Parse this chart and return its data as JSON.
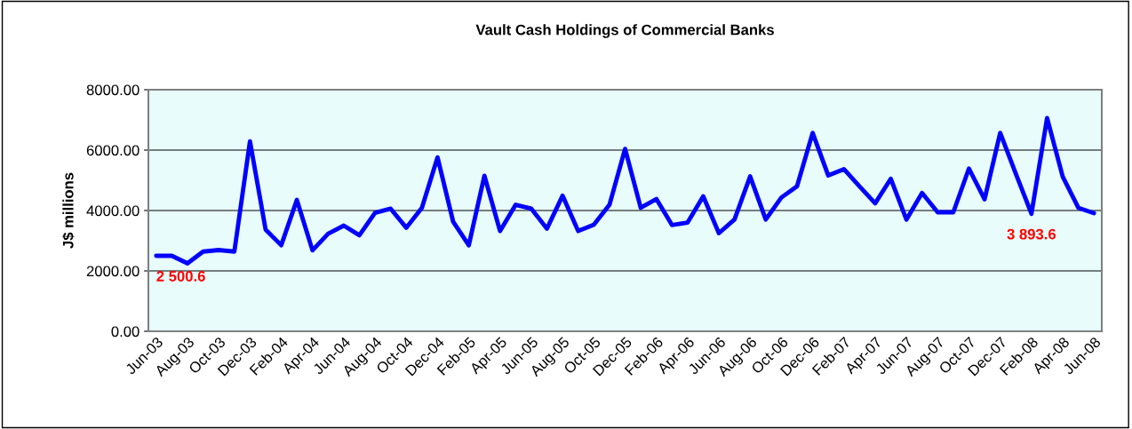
{
  "chart_data": {
    "type": "line",
    "title": "Vault Cash Holdings of Commercial Banks",
    "ylabel": "J$ millions",
    "categories": [
      "Jun-03",
      null,
      "Aug-03",
      null,
      "Oct-03",
      null,
      "Dec-03",
      null,
      "Feb-04",
      null,
      "Apr-04",
      null,
      "Jun-04",
      null,
      "Aug-04",
      null,
      "Oct-04",
      null,
      "Dec-04",
      null,
      "Feb-05",
      null,
      "Apr-05",
      null,
      "Jun-05",
      null,
      "Aug-05",
      null,
      "Oct-05",
      null,
      "Dec-05",
      null,
      "Feb-06",
      null,
      "Apr-06",
      null,
      "Jun-06",
      null,
      "Aug-06",
      null,
      "Oct-06",
      null,
      "Dec-06",
      null,
      "Feb-07",
      null,
      "Apr-07",
      null,
      "Jun-07",
      null,
      "Aug-07",
      null,
      "Oct-07",
      null,
      "Dec-07",
      null,
      "Feb-08",
      null,
      "Apr-08",
      null,
      "Jun-08"
    ],
    "series": [
      {
        "color": "#0000ff",
        "values": [
          2500.6,
          2500,
          2250,
          2640,
          2690,
          2640,
          6290,
          3370,
          2850,
          4350,
          2680,
          3230,
          3500,
          3180,
          3920,
          4060,
          3430,
          4090,
          5760,
          3630,
          2850,
          5150,
          3320,
          4190,
          4060,
          3400,
          4490,
          3320,
          3530,
          4190,
          6040,
          4090,
          4380,
          3520,
          3600,
          4470,
          3250,
          3700,
          5130,
          3700,
          4430,
          4800,
          6570,
          5160,
          5370,
          4800,
          4240,
          5050,
          3700,
          4580,
          3940,
          3940,
          5390,
          4370,
          6570,
          5220,
          3893.6,
          7060,
          5120,
          4090,
          3910
        ],
        "value_labels": [
          "2 500.6",
          null,
          null,
          null,
          null,
          null,
          null,
          null,
          null,
          null,
          null,
          null,
          null,
          null,
          null,
          null,
          null,
          null,
          null,
          null,
          null,
          null,
          null,
          null,
          null,
          null,
          null,
          null,
          null,
          null,
          null,
          null,
          null,
          null,
          null,
          null,
          null,
          null,
          null,
          null,
          null,
          null,
          null,
          null,
          null,
          null,
          null,
          null,
          null,
          null,
          null,
          null,
          null,
          null,
          null,
          null,
          "3 893.6",
          null,
          null,
          null,
          null
        ]
      }
    ],
    "ylim": [
      0,
      8000
    ],
    "yticks": [
      {
        "value": 0,
        "label": "0.00"
      },
      {
        "value": 2000,
        "label": "2000.00"
      },
      {
        "value": 4000,
        "label": "4000.00"
      },
      {
        "value": 6000,
        "label": "6000.00"
      },
      {
        "value": 8000,
        "label": "8000.00"
      }
    ],
    "grid": "y",
    "marker": "none",
    "line_style": "solid"
  }
}
